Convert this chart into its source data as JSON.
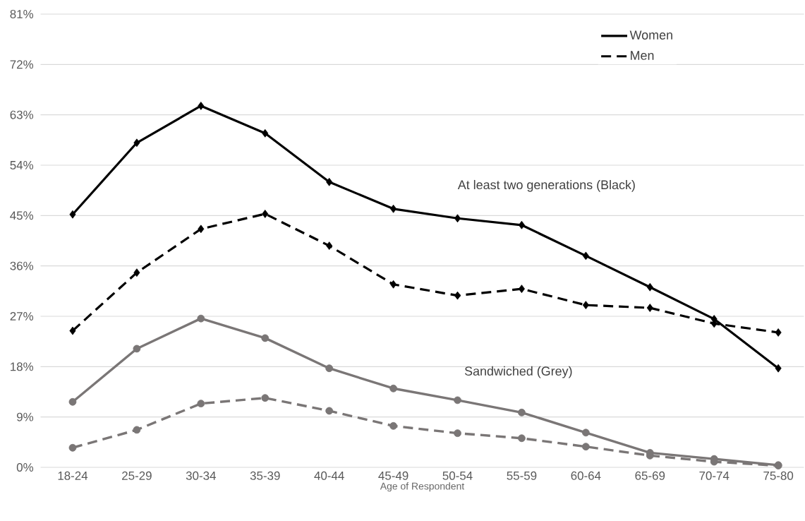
{
  "chart_data": {
    "type": "line",
    "xlabel": "Age of Respondent",
    "categories": [
      "18-24",
      "25-29",
      "30-34",
      "35-39",
      "40-44",
      "45-49",
      "50-54",
      "55-59",
      "60-64",
      "65-69",
      "70-74",
      "75-80"
    ],
    "series": [
      {
        "name": "Women",
        "color": "#000000",
        "line_style": "solid",
        "marker": "diamond",
        "values": [
          45.2,
          58.0,
          64.6,
          59.7,
          51.0,
          46.2,
          44.5,
          43.3,
          37.8,
          32.2,
          26.5,
          17.7
        ]
      },
      {
        "name": "Men",
        "color": "#000000",
        "line_style": "dashed",
        "marker": "diamond",
        "values": [
          24.4,
          34.8,
          42.6,
          45.3,
          39.6,
          32.7,
          30.7,
          31.9,
          29.0,
          28.5,
          25.7,
          24.1
        ]
      },
      {
        "color": "#7a7676",
        "line_style": "solid",
        "marker": "circle",
        "values": [
          11.7,
          21.2,
          26.6,
          23.1,
          17.7,
          14.1,
          12.0,
          9.8,
          6.2,
          2.6,
          1.5,
          0.4
        ]
      },
      {
        "color": "#7a7676",
        "line_style": "dashed",
        "marker": "circle",
        "values": [
          3.5,
          6.7,
          11.4,
          12.4,
          10.1,
          7.4,
          6.1,
          5.2,
          3.7,
          2.1,
          1.0,
          0.3
        ]
      }
    ],
    "ylim": [
      0,
      81
    ],
    "yticks": [
      {
        "value": 0,
        "label": "0%"
      },
      {
        "value": 9,
        "label": "9%"
      },
      {
        "value": 18,
        "label": "18%"
      },
      {
        "value": 27,
        "label": "27%"
      },
      {
        "value": 36,
        "label": "36%"
      },
      {
        "value": 45,
        "label": "45%"
      },
      {
        "value": 54,
        "label": "54%"
      },
      {
        "value": 63,
        "label": "63%"
      },
      {
        "value": 72,
        "label": "72%"
      },
      {
        "value": 81,
        "label": "81%"
      }
    ],
    "grid": "y",
    "legend": "top right",
    "annotations": [
      "At least two generations (Black)",
      "Sandwiched (Grey)"
    ]
  }
}
